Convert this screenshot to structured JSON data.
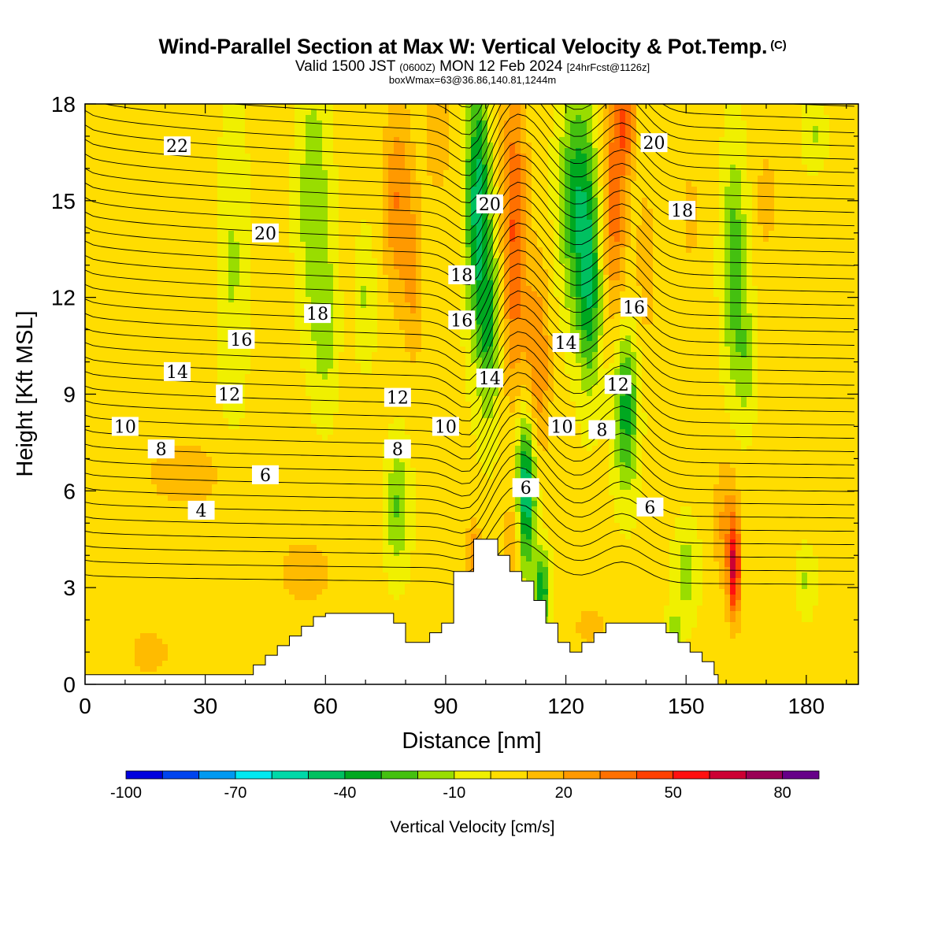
{
  "title": {
    "main": "Wind-Parallel Section at Max W: Vertical Velocity & Pot.Temp.",
    "copyright": "(C)",
    "valid_a": "Valid 1500 JST",
    "valid_z": "(0600Z)",
    "valid_b": "MON 12 Feb 2024",
    "valid_c": "[24hrFcst@1126z]",
    "boxwmax": "boxWmax=63@36.86,140.81,1244m"
  },
  "chart_data": {
    "type": "contour-section",
    "xlabel": "Distance [nm]",
    "ylabel": "Height [Kft MSL]",
    "xlim": [
      0,
      193
    ],
    "ylim": [
      0,
      18
    ],
    "xticks": [
      "0",
      "30",
      "60",
      "90",
      "120",
      "150",
      "180"
    ],
    "yticks": [
      "0",
      "3",
      "6",
      "9",
      "12",
      "15",
      "18"
    ],
    "xtick_values": [
      0,
      30,
      60,
      90,
      120,
      150,
      180
    ],
    "ytick_values": [
      0,
      3,
      6,
      9,
      12,
      15,
      18
    ],
    "colorbar": {
      "label": "Vertical Velocity [cm/s]",
      "tick_labels": [
        "-100",
        "-70",
        "-40",
        "-10",
        "20",
        "50",
        "80"
      ],
      "tick_values": [
        -100,
        -70,
        -40,
        -10,
        20,
        50,
        80
      ],
      "range": [
        -100,
        90
      ],
      "colors": [
        "#0000dd",
        "#0044ee",
        "#0099f0",
        "#00e8f0",
        "#00d8a8",
        "#00c060",
        "#00a820",
        "#44c010",
        "#99dd00",
        "#f0f000",
        "#ffdd00",
        "#ffbb00",
        "#ff9900",
        "#ff7000",
        "#ff4000",
        "#ff1010",
        "#cc0033",
        "#990055",
        "#660088"
      ]
    },
    "theta_contour_labels": [
      {
        "text": "22",
        "x": 23,
        "y": 16.7
      },
      {
        "text": "20",
        "x": 45,
        "y": 14.0
      },
      {
        "text": "18",
        "x": 58,
        "y": 11.5
      },
      {
        "text": "16",
        "x": 39,
        "y": 10.7
      },
      {
        "text": "14",
        "x": 23,
        "y": 9.7
      },
      {
        "text": "12",
        "x": 36,
        "y": 9.0
      },
      {
        "text": "10",
        "x": 10,
        "y": 8.0
      },
      {
        "text": "8",
        "x": 19,
        "y": 7.3
      },
      {
        "text": "6",
        "x": 45,
        "y": 6.5
      },
      {
        "text": "4",
        "x": 29,
        "y": 5.4
      },
      {
        "text": "20",
        "x": 101,
        "y": 14.9
      },
      {
        "text": "18",
        "x": 94,
        "y": 12.7
      },
      {
        "text": "16",
        "x": 94,
        "y": 11.3
      },
      {
        "text": "14",
        "x": 101,
        "y": 9.5
      },
      {
        "text": "12",
        "x": 78,
        "y": 8.9
      },
      {
        "text": "10",
        "x": 90,
        "y": 8.0
      },
      {
        "text": "8",
        "x": 78,
        "y": 7.3
      },
      {
        "text": "6",
        "x": 110,
        "y": 6.1
      },
      {
        "text": "10",
        "x": 119,
        "y": 8.0
      },
      {
        "text": "8",
        "x": 129,
        "y": 7.9
      },
      {
        "text": "12",
        "x": 133,
        "y": 9.3
      },
      {
        "text": "14",
        "x": 120,
        "y": 10.6
      },
      {
        "text": "16",
        "x": 137,
        "y": 11.7
      },
      {
        "text": "18",
        "x": 149,
        "y": 14.7
      },
      {
        "text": "20",
        "x": 142,
        "y": 16.8
      },
      {
        "text": "6",
        "x": 141,
        "y": 5.5
      }
    ],
    "terrain_profile_kft": [
      [
        0,
        0.3
      ],
      [
        42,
        0.3
      ],
      [
        42,
        0.6
      ],
      [
        45,
        0.6
      ],
      [
        45,
        0.9
      ],
      [
        48,
        0.9
      ],
      [
        48,
        1.2
      ],
      [
        51,
        1.2
      ],
      [
        51,
        1.5
      ],
      [
        54,
        1.5
      ],
      [
        54,
        1.8
      ],
      [
        57,
        1.8
      ],
      [
        57,
        2.1
      ],
      [
        60,
        2.1
      ],
      [
        60,
        2.2
      ],
      [
        77,
        2.2
      ],
      [
        77,
        1.9
      ],
      [
        80,
        1.9
      ],
      [
        80,
        1.3
      ],
      [
        86,
        1.3
      ],
      [
        86,
        1.6
      ],
      [
        89,
        1.6
      ],
      [
        89,
        1.9
      ],
      [
        92,
        1.9
      ],
      [
        92,
        3.5
      ],
      [
        97,
        3.5
      ],
      [
        97,
        4.5
      ],
      [
        103,
        4.5
      ],
      [
        103,
        4.0
      ],
      [
        106,
        4.0
      ],
      [
        106,
        3.5
      ],
      [
        109,
        3.5
      ],
      [
        109,
        3.2
      ],
      [
        112,
        3.2
      ],
      [
        112,
        2.6
      ],
      [
        115,
        2.6
      ],
      [
        115,
        1.9
      ],
      [
        118,
        1.9
      ],
      [
        118,
        1.3
      ],
      [
        121,
        1.3
      ],
      [
        121,
        1.0
      ],
      [
        124,
        1.0
      ],
      [
        124,
        1.3
      ],
      [
        127,
        1.3
      ],
      [
        127,
        1.6
      ],
      [
        130,
        1.6
      ],
      [
        130,
        1.9
      ],
      [
        145,
        1.9
      ],
      [
        145,
        1.6
      ],
      [
        148,
        1.6
      ],
      [
        148,
        1.3
      ],
      [
        151,
        1.3
      ],
      [
        151,
        1.0
      ],
      [
        154,
        1.0
      ],
      [
        154,
        0.7
      ],
      [
        157,
        0.7
      ],
      [
        157,
        0.3
      ],
      [
        158,
        0.3
      ],
      [
        158,
        0
      ],
      [
        0,
        0
      ]
    ],
    "w_features": [
      {
        "x": 37,
        "z": 13,
        "sx": 3.5,
        "sz": 5,
        "w": -14
      },
      {
        "x": 57,
        "z": 15,
        "sx": 4,
        "sz": 4,
        "w": -22
      },
      {
        "x": 60,
        "z": 11,
        "sx": 3,
        "sz": 2.5,
        "w": -17
      },
      {
        "x": 70,
        "z": 12,
        "sx": 2.5,
        "sz": 2,
        "w": -14
      },
      {
        "x": 78,
        "z": 15,
        "sx": 3.5,
        "sz": 3,
        "w": 27
      },
      {
        "x": 82,
        "z": 12.5,
        "sx": 2.5,
        "sz": 2.5,
        "w": 18
      },
      {
        "x": 88,
        "z": 17,
        "sx": 3.5,
        "sz": 2,
        "w": 14
      },
      {
        "x": 98,
        "z": 15,
        "sx": 3,
        "sz": 4,
        "w": -48
      },
      {
        "x": 101,
        "z": 11,
        "sx": 3,
        "sz": 3,
        "w": -30
      },
      {
        "x": 107,
        "z": 14,
        "sx": 3.2,
        "sz": 5,
        "w": 38
      },
      {
        "x": 113,
        "z": 10,
        "sx": 3,
        "sz": 3,
        "w": 28
      },
      {
        "x": 123,
        "z": 15,
        "sx": 4.5,
        "sz": 3.5,
        "w": -40
      },
      {
        "x": 126,
        "z": 12,
        "sx": 3,
        "sz": 3,
        "w": -33
      },
      {
        "x": 132,
        "z": 15,
        "sx": 3,
        "sz": 3.5,
        "w": 34
      },
      {
        "x": 135,
        "z": 17.5,
        "sx": 2.5,
        "sz": 1.5,
        "w": 32
      },
      {
        "x": 135,
        "z": 8.5,
        "sx": 3,
        "sz": 2.5,
        "w": -38
      },
      {
        "x": 140,
        "z": 13,
        "sx": 2.5,
        "sz": 2.5,
        "w": 14
      },
      {
        "x": 151,
        "z": 14.5,
        "sx": 2.5,
        "sz": 2,
        "w": 10
      },
      {
        "x": 162,
        "z": 13,
        "sx": 3,
        "sz": 3.5,
        "w": -30
      },
      {
        "x": 165,
        "z": 10,
        "sx": 2.5,
        "sz": 2,
        "w": -16
      },
      {
        "x": 170,
        "z": 15,
        "sx": 2.5,
        "sz": 1.8,
        "w": 12
      },
      {
        "x": 182,
        "z": 17,
        "sx": 3,
        "sz": 1,
        "w": -14
      },
      {
        "x": 110,
        "z": 6,
        "sx": 2.5,
        "sz": 2.5,
        "w": -55
      },
      {
        "x": 114,
        "z": 2.8,
        "sx": 2,
        "sz": 1.3,
        "w": -40
      },
      {
        "x": 78,
        "z": 5.5,
        "sx": 3,
        "sz": 2,
        "w": -24
      },
      {
        "x": 107,
        "z": 4.5,
        "sx": 2,
        "sz": 1.5,
        "w": 20
      },
      {
        "x": 97,
        "z": 4,
        "sx": 2,
        "sz": 1,
        "w": 26
      },
      {
        "x": 162,
        "z": 3.5,
        "sx": 1.5,
        "sz": 1.5,
        "w": 55
      },
      {
        "x": 160,
        "z": 5,
        "sx": 3,
        "sz": 2,
        "w": 20
      },
      {
        "x": 150,
        "z": 3.5,
        "sx": 3,
        "sz": 1.5,
        "w": -18
      },
      {
        "x": 147,
        "z": 1.2,
        "sx": 2,
        "sz": 1,
        "w": -24
      },
      {
        "x": 180,
        "z": 3.2,
        "sx": 2.5,
        "sz": 1,
        "w": -14
      },
      {
        "x": 55,
        "z": 3.5,
        "sx": 10,
        "sz": 1.5,
        "w": 10
      },
      {
        "x": 25,
        "z": 6.5,
        "sx": 14,
        "sz": 1.5,
        "w": 10
      },
      {
        "x": 16,
        "z": 1,
        "sx": 7,
        "sz": 1,
        "w": 10
      },
      {
        "x": 126,
        "z": 1.8,
        "sx": 6,
        "sz": 1,
        "w": 9
      },
      {
        "x": 95,
        "z": 1,
        "sx": 6,
        "sz": 1,
        "w": 9
      }
    ]
  }
}
